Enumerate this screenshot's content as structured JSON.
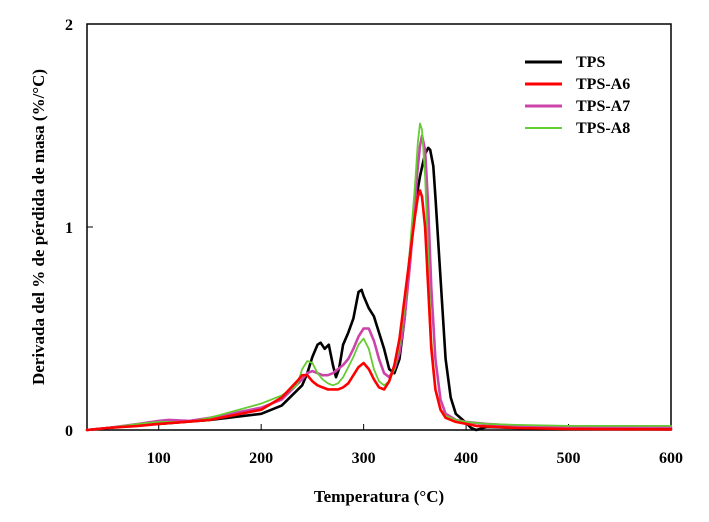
{
  "chart_data": {
    "type": "line",
    "title": "",
    "xlabel": "Temperatura (°C)",
    "ylabel": "Derivada del % de pérdida de masa (%/°C)",
    "xlim": [
      30,
      600
    ],
    "ylim": [
      0,
      2
    ],
    "x_ticks": [
      100,
      200,
      300,
      400,
      500,
      600
    ],
    "x_tick_labels": [
      "100",
      "200",
      "300",
      "400",
      "500",
      "600"
    ],
    "y_ticks": [
      0,
      1,
      2
    ],
    "y_tick_labels": [
      "0",
      "1",
      "2"
    ],
    "grid": false,
    "legend_position": "top-right",
    "series": [
      {
        "name": "TPS",
        "color": "#000000",
        "x": [
          30,
          50,
          80,
          100,
          150,
          200,
          220,
          240,
          245,
          250,
          255,
          258,
          262,
          266,
          270,
          273,
          276,
          280,
          285,
          290,
          295,
          298,
          300,
          305,
          310,
          315,
          320,
          325,
          330,
          335,
          340,
          345,
          350,
          355,
          358,
          360,
          363,
          365,
          368,
          370,
          375,
          380,
          385,
          390,
          400,
          405,
          410,
          420,
          450,
          500,
          600
        ],
        "y": [
          0.0,
          0.01,
          0.025,
          0.03,
          0.05,
          0.08,
          0.12,
          0.22,
          0.28,
          0.36,
          0.42,
          0.43,
          0.4,
          0.42,
          0.32,
          0.26,
          0.3,
          0.42,
          0.48,
          0.55,
          0.68,
          0.69,
          0.66,
          0.6,
          0.56,
          0.48,
          0.4,
          0.3,
          0.28,
          0.35,
          0.55,
          0.85,
          1.1,
          1.25,
          1.32,
          1.36,
          1.39,
          1.38,
          1.3,
          1.15,
          0.75,
          0.35,
          0.16,
          0.08,
          0.035,
          0.01,
          0.0,
          0.015,
          0.01,
          0.005,
          0.005
        ]
      },
      {
        "name": "TPS-A6",
        "color": "#ff0000",
        "x": [
          30,
          50,
          80,
          100,
          150,
          200,
          220,
          235,
          240,
          245,
          250,
          255,
          260,
          265,
          270,
          275,
          280,
          285,
          290,
          295,
          300,
          305,
          310,
          315,
          320,
          325,
          330,
          335,
          340,
          345,
          350,
          353,
          355,
          357,
          360,
          363,
          366,
          370,
          375,
          380,
          390,
          400,
          410,
          450,
          500,
          600
        ],
        "y": [
          0.0,
          0.01,
          0.02,
          0.03,
          0.05,
          0.1,
          0.16,
          0.24,
          0.27,
          0.27,
          0.24,
          0.22,
          0.21,
          0.2,
          0.2,
          0.2,
          0.21,
          0.23,
          0.27,
          0.31,
          0.33,
          0.3,
          0.25,
          0.21,
          0.2,
          0.24,
          0.32,
          0.45,
          0.65,
          0.85,
          1.05,
          1.15,
          1.18,
          1.15,
          1.0,
          0.7,
          0.4,
          0.2,
          0.1,
          0.06,
          0.04,
          0.03,
          0.02,
          0.01,
          0.005,
          0.003
        ]
      },
      {
        "name": "TPS-A7",
        "color": "#cc44aa",
        "x": [
          30,
          50,
          80,
          100,
          110,
          130,
          150,
          200,
          220,
          240,
          245,
          250,
          255,
          260,
          265,
          270,
          275,
          280,
          285,
          290,
          295,
          300,
          305,
          310,
          315,
          320,
          325,
          330,
          335,
          340,
          345,
          350,
          352,
          355,
          357,
          360,
          363,
          366,
          370,
          375,
          380,
          390,
          400,
          420,
          450,
          500,
          600
        ],
        "y": [
          0.0,
          0.01,
          0.03,
          0.045,
          0.05,
          0.045,
          0.06,
          0.11,
          0.15,
          0.25,
          0.28,
          0.29,
          0.28,
          0.27,
          0.27,
          0.28,
          0.3,
          0.32,
          0.35,
          0.4,
          0.46,
          0.5,
          0.5,
          0.44,
          0.35,
          0.28,
          0.26,
          0.3,
          0.38,
          0.55,
          0.8,
          1.1,
          1.25,
          1.4,
          1.45,
          1.38,
          1.1,
          0.7,
          0.35,
          0.15,
          0.08,
          0.05,
          0.04,
          0.03,
          0.02,
          0.015,
          0.015
        ]
      },
      {
        "name": "TPS-A8",
        "color": "#66cc33",
        "x": [
          30,
          50,
          80,
          100,
          130,
          150,
          200,
          220,
          235,
          240,
          245,
          250,
          255,
          260,
          265,
          270,
          275,
          280,
          285,
          290,
          295,
          300,
          305,
          310,
          315,
          320,
          325,
          330,
          335,
          340,
          345,
          350,
          353,
          355,
          357,
          360,
          363,
          366,
          370,
          375,
          380,
          390,
          400,
          420,
          450,
          500,
          600
        ],
        "y": [
          0.0,
          0.01,
          0.03,
          0.04,
          0.04,
          0.06,
          0.13,
          0.17,
          0.22,
          0.3,
          0.34,
          0.33,
          0.28,
          0.25,
          0.23,
          0.22,
          0.23,
          0.26,
          0.31,
          0.36,
          0.42,
          0.45,
          0.4,
          0.3,
          0.24,
          0.22,
          0.24,
          0.3,
          0.42,
          0.6,
          0.88,
          1.2,
          1.42,
          1.51,
          1.48,
          1.25,
          0.85,
          0.45,
          0.2,
          0.1,
          0.07,
          0.05,
          0.04,
          0.03,
          0.025,
          0.02,
          0.02
        ]
      }
    ]
  }
}
